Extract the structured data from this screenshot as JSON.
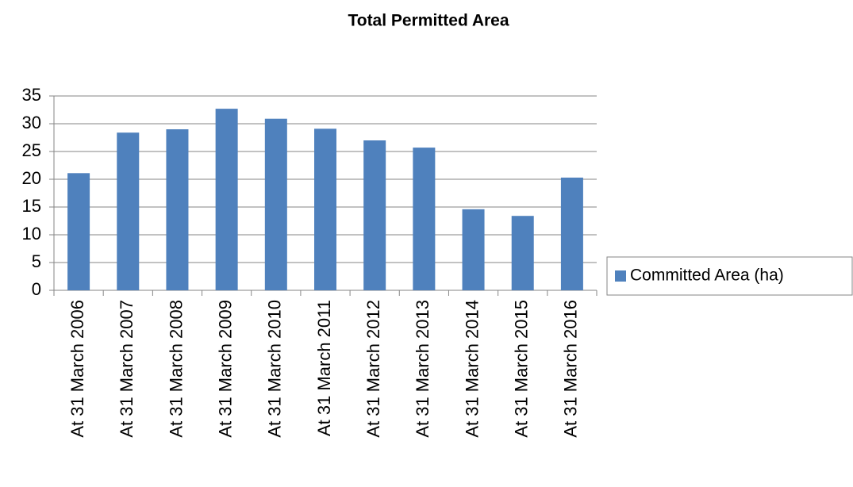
{
  "chart_data": {
    "type": "bar",
    "title": "Total Permitted Area",
    "categories": [
      "At 31 March 2006",
      "At 31 March 2007",
      "At 31 March 2008",
      "At 31 March 2009",
      "At 31 March 2010",
      "At 31 March 2011",
      "At 31 March 2012",
      "At 31 March 2013",
      "At 31 March 2014",
      "At 31 March 2015",
      "At 31 March 2016"
    ],
    "series": [
      {
        "name": "Committed Area (ha)",
        "color": "#4f81bd",
        "values": [
          21.1,
          28.4,
          29.0,
          32.7,
          30.9,
          29.1,
          27.0,
          25.7,
          14.6,
          13.4,
          20.3
        ]
      }
    ],
    "ylim": [
      0,
      35
    ],
    "yticks": [
      0,
      5,
      10,
      15,
      20,
      25,
      30,
      35
    ],
    "grid": true,
    "legend": "right"
  }
}
